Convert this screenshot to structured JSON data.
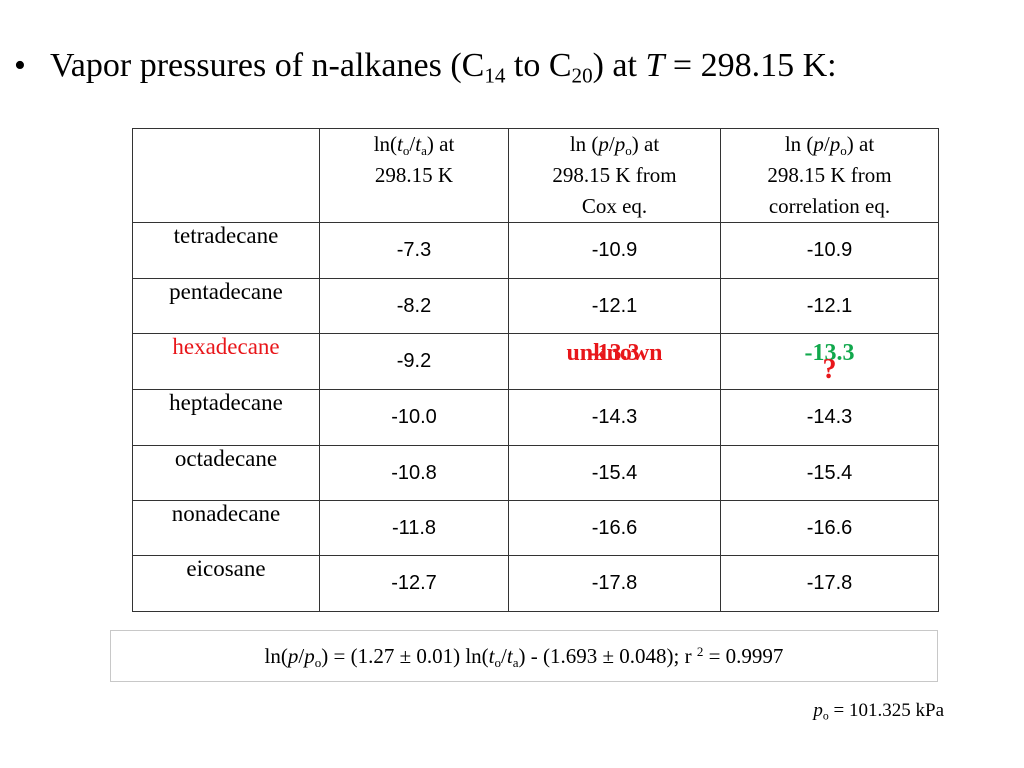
{
  "title": {
    "bullet": "•",
    "prefix": "Vapor pressures of n-alkanes (C",
    "sub1": "14",
    "mid": " to C",
    "sub2": "20",
    "after": ") at ",
    "var": "T",
    "value": " = 298.15 K:"
  },
  "headers": {
    "col1": {
      "a": "ln(",
      "v1": "t",
      "s1": "o",
      "slash": "/",
      "v2": "t",
      "s2": "a",
      "b": ") at",
      "line2": "298.15 K"
    },
    "col2": {
      "a": "ln (",
      "v1": "p",
      "slash": "/",
      "v2": "p",
      "s2": "o",
      "b": ") at",
      "line2": "298.15 K from",
      "line3": "Cox eq."
    },
    "col3": {
      "a": "ln (",
      "v1": "p",
      "slash": "/",
      "v2": "p",
      "s2": "o",
      "b": ") at",
      "line2": "298.15 K from",
      "line3": "correlation eq."
    }
  },
  "rows": [
    {
      "name": "tetradecane",
      "c1": "-7.3",
      "c2": "-10.9",
      "c3": "-10.9"
    },
    {
      "name": "pentadecane",
      "c1": "-8.2",
      "c2": "-12.1",
      "c3": "-12.1"
    },
    {
      "name": "hexadecane",
      "c1": "-9.2",
      "c2_a": "-13.3",
      "c2_b": "unknown",
      "c3": "-13.3",
      "q": "?"
    },
    {
      "name": "heptadecane",
      "c1": "-10.0",
      "c2": "-14.3",
      "c3": "-14.3"
    },
    {
      "name": "octadecane",
      "c1": "-10.8",
      "c2": "-15.4",
      "c3": "-15.4"
    },
    {
      "name": "nonadecane",
      "c1": "-11.8",
      "c2": "-16.6",
      "c3": "-16.6"
    },
    {
      "name": "eicosane",
      "c1": "-12.7",
      "c2": "-17.8",
      "c3": "-17.8"
    }
  ],
  "equation": {
    "p1": "ln(",
    "v1": "p",
    "slash1": "/",
    "v2": "p",
    "s2": "o",
    "p2": ") = (1.27 ± 0.01) ln(",
    "v3": "t",
    "s3": "o",
    "slash2": "/",
    "v4": "t",
    "s4": "a",
    "p3": ") - (1.693 ± 0.048);  r ",
    "sup": "2",
    "p4": " = 0.9997"
  },
  "footnote": {
    "v": "p",
    "s": "o",
    "rest": " = 101.325 kPa"
  },
  "colors": {
    "highlight_red": "#e8161a",
    "highlight_green": "#11a84c"
  }
}
